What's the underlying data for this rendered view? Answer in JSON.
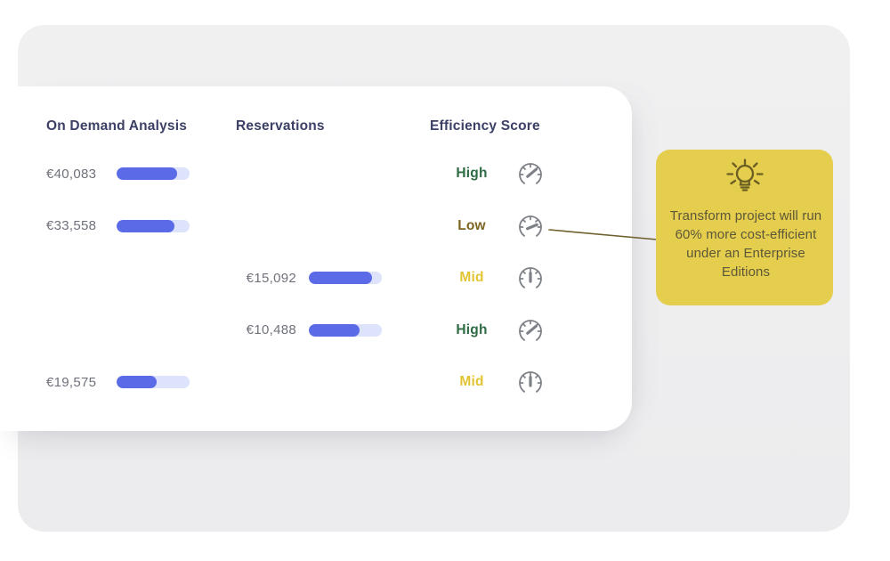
{
  "panel": {
    "columns": [
      {
        "label": "On Demand Analysis"
      },
      {
        "label": "Reservations"
      },
      {
        "label": "Efficiency Score"
      }
    ],
    "rows": [
      {
        "on_demand": {
          "value": "€40,083",
          "percent": 83
        },
        "reservation": null,
        "score": {
          "label": "High",
          "level": "high"
        }
      },
      {
        "on_demand": {
          "value": "€33,558",
          "percent": 79
        },
        "reservation": null,
        "score": {
          "label": "Low",
          "level": "low"
        }
      },
      {
        "on_demand": null,
        "reservation": {
          "value": "€15,092",
          "percent": 86
        },
        "score": {
          "label": "Mid",
          "level": "mid"
        }
      },
      {
        "on_demand": null,
        "reservation": {
          "value": "€10,488",
          "percent": 69
        },
        "score": {
          "label": "High",
          "level": "high"
        }
      },
      {
        "on_demand": {
          "value": "€19,575",
          "percent": 55
        },
        "reservation": null,
        "score": {
          "label": "Mid",
          "level": "mid"
        }
      }
    ]
  },
  "callout": {
    "icon": "lightbulb-icon",
    "text": "Transform project will run 60% more cost-efficient under an Enterprise Editions"
  },
  "colors": {
    "panel_bg": "#F0F0F1",
    "card_bg": "#FFFFFF",
    "header_text": "#3C4066",
    "value_text": "#6F727B",
    "bar_fill": "#5B6BE8",
    "bar_track": "#DDE3FB",
    "score_high": "#2F6B43",
    "score_low": "#7D6420",
    "score_mid": "#E2C433",
    "gauge_icon": "#7D8086",
    "callout_bg": "#E5CE4E",
    "callout_text": "#5C5738",
    "callout_icon": "#6A5E22",
    "connector": "#6F5F2D"
  }
}
